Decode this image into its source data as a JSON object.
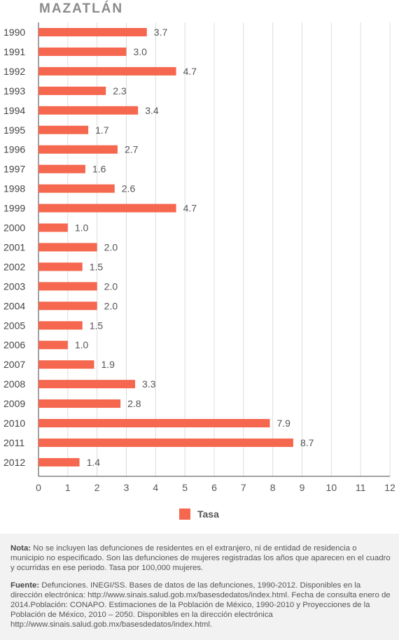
{
  "title": "MAZATLÁN",
  "colors": {
    "bar": "#f5674e",
    "grid": "#dcdcdc",
    "axis": "#444444"
  },
  "legend": {
    "label": "Tasa"
  },
  "notes": {
    "nota_label": "Nota:",
    "nota_text": "No se incluyen las defunciones de residentes en el extranjero, ni de entidad de residencia o municipio no especificado. Son las defunciones de mujeres registradas los años que aparecen en el cuadro y ocurridas en ese periodo. Tasa por 100,000 mujeres.",
    "fuente_label": "Fuente:",
    "fuente_text": "Defunciones. INEGI/SS. Bases de datos de las defunciones, 1990-2012. Disponibles en la dirección electrónica: http://www.sinais.salud.gob.mx/basesdedatos/index.html. Fecha de consulta enero de 2014.Población: CONAPO. Estimaciones de la Población de México, 1990-2010 y Proyecciones de la Población de México, 2010 – 2050. Disponibles en la dirección electrónica http://www.sinais.salud.gob.mx/basesdedatos/index.html."
  },
  "chart_data": {
    "type": "bar",
    "orientation": "horizontal",
    "categories": [
      "1990",
      "1991",
      "1992",
      "1993",
      "1994",
      "1995",
      "1996",
      "1997",
      "1998",
      "1999",
      "2000",
      "2001",
      "2002",
      "2003",
      "2004",
      "2005",
      "2006",
      "2007",
      "2008",
      "2009",
      "2010",
      "2011",
      "2012"
    ],
    "series": [
      {
        "name": "Tasa",
        "values": [
          3.7,
          3.0,
          4.7,
          2.3,
          3.4,
          1.7,
          2.7,
          1.6,
          2.6,
          4.7,
          1.0,
          2.0,
          1.5,
          2.0,
          2.0,
          1.5,
          1.0,
          1.9,
          3.3,
          2.8,
          7.9,
          8.7,
          1.4
        ],
        "labels": [
          "3.7",
          "3.0",
          "4.7",
          "2.3",
          "3.4",
          "1.7",
          "2.7",
          "1.6",
          "2.6",
          "4.7",
          "1.0",
          "2.0",
          "1.5",
          "2.0",
          "2.0",
          "1.5",
          "1.0",
          "1.9",
          "3.3",
          "2.8",
          "7.9",
          "8.7",
          "1.4"
        ]
      }
    ],
    "xlim": [
      0,
      12
    ],
    "xticks": [
      "0",
      "1",
      "2",
      "3",
      "4",
      "5",
      "6",
      "7",
      "8",
      "9",
      "10",
      "11",
      "12"
    ],
    "grid": true,
    "legend_position": "bottom"
  }
}
